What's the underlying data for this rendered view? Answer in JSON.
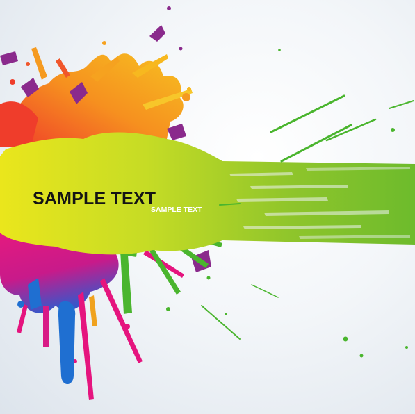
{
  "headline": "SAMPLE TEXT",
  "subline": "SAMPLE TEXT",
  "colors": {
    "background": "#eef2f6",
    "lime": "#9ccc2a",
    "yellow": "#e8e21a",
    "orange": "#f4891f",
    "red": "#ec3a2a",
    "magenta": "#e5147e",
    "purple": "#8a2a8c",
    "blue": "#1f6fd1",
    "green": "#4ab52e",
    "text": "#141414"
  }
}
